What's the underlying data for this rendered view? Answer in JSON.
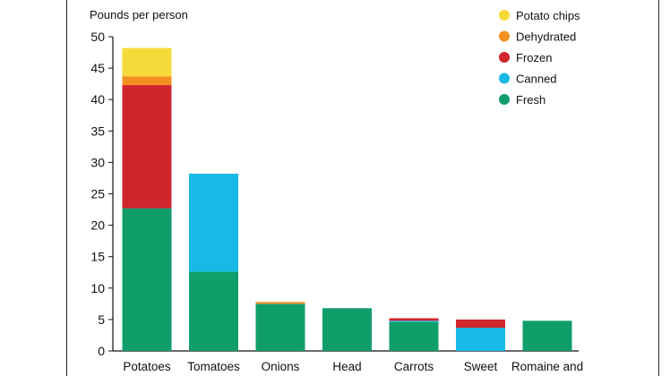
{
  "chart_data": {
    "type": "bar",
    "stacked": true,
    "ylabel": "Pounds per person",
    "ylim": [
      0,
      50
    ],
    "yticks": [
      0,
      5,
      10,
      15,
      20,
      25,
      30,
      35,
      40,
      45,
      50
    ],
    "categories": [
      "Potatoes",
      "Tomatoes",
      "Onions",
      "Head",
      "Carrots",
      "Sweet",
      "Romaine and"
    ],
    "legend_position": "top-right",
    "series": [
      {
        "name": "Fresh",
        "color": "#0f9e6a",
        "values": [
          22.7,
          12.6,
          7.5,
          6.8,
          4.6,
          0,
          4.8
        ]
      },
      {
        "name": "Canned",
        "color": "#18b9e6",
        "values": [
          0,
          15.6,
          0,
          0,
          0.2,
          3.7,
          0
        ]
      },
      {
        "name": "Frozen",
        "color": "#d0252d",
        "values": [
          19.6,
          0,
          0,
          0,
          0.4,
          1.3,
          0
        ]
      },
      {
        "name": "Dehydrated",
        "color": "#f3901f",
        "values": [
          1.4,
          0,
          0.3,
          0,
          0,
          0,
          0
        ]
      },
      {
        "name": "Potato chips",
        "color": "#f6da39",
        "values": [
          4.5,
          0,
          0,
          0,
          0,
          0,
          0
        ]
      }
    ]
  }
}
